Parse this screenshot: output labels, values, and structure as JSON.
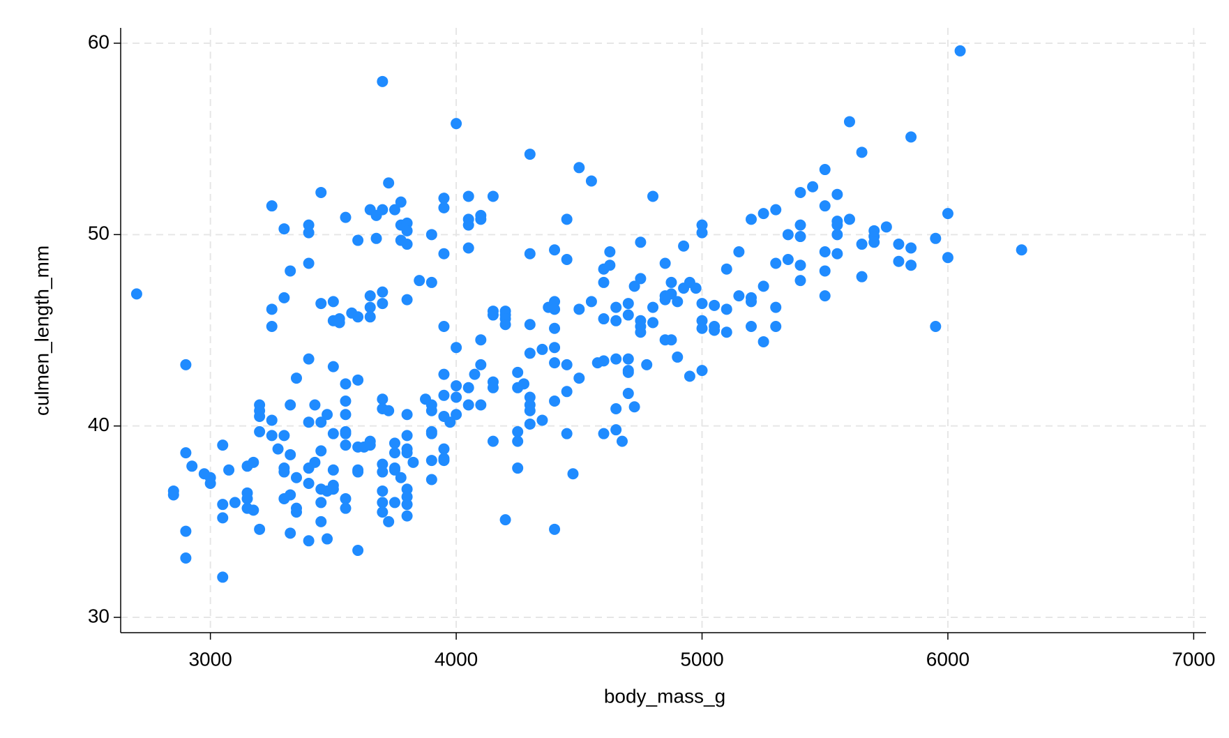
{
  "chart_data": {
    "type": "scatter",
    "x_label": "body_mass_g",
    "y_label": "culmen_length_mm",
    "xlim": [
      2635,
      7050
    ],
    "ylim": [
      29.2,
      60.8
    ],
    "xticks": [
      3000,
      4000,
      5000,
      6000,
      7000
    ],
    "yticks": [
      30,
      40,
      50,
      60
    ],
    "grid": true,
    "series": [
      {
        "color": "#1f8bff",
        "x": [
          2700,
          6050,
          3700,
          4000,
          6300,
          3050,
          2900,
          2900,
          2900,
          2900,
          2850,
          2850,
          2925,
          2975,
          3000,
          3000,
          3050,
          3050,
          3050,
          3075,
          3100,
          3150,
          3150,
          3150,
          3150,
          3175,
          3175,
          3200,
          3200,
          3200,
          3200,
          3200,
          3250,
          3250,
          3250,
          3250,
          3250,
          3275,
          3300,
          3300,
          3300,
          3300,
          3300,
          3300,
          3325,
          3325,
          3325,
          3325,
          3325,
          3350,
          3350,
          3350,
          3350,
          3400,
          3400,
          3400,
          3400,
          3400,
          3400,
          3400,
          3400,
          3425,
          3425,
          3450,
          3450,
          3450,
          3450,
          3450,
          3450,
          3450,
          3475,
          3475,
          3475,
          3500,
          3500,
          3500,
          3500,
          3500,
          3500,
          3500,
          3525,
          3525,
          3550,
          3550,
          3550,
          3550,
          3550,
          3550,
          3550,
          3550,
          3550,
          3575,
          3600,
          3600,
          3600,
          3600,
          3600,
          3600,
          3600,
          3625,
          3650,
          3650,
          3650,
          3650,
          3650,
          3650,
          3675,
          3675,
          3700,
          3700,
          3700,
          3700,
          3700,
          3700,
          3700,
          3700,
          3700,
          3700,
          3725,
          3725,
          3725,
          3750,
          3750,
          3750,
          3750,
          3750,
          3750,
          3775,
          3775,
          3775,
          3775,
          3800,
          3800,
          3800,
          3800,
          3800,
          3800,
          3800,
          3800,
          3800,
          3800,
          3800,
          3800,
          3825,
          3850,
          3875,
          3900,
          3900,
          3900,
          3900,
          3900,
          3900,
          3900,
          3900,
          3950,
          3950,
          3950,
          3950,
          3950,
          3950,
          3950,
          3950,
          3950,
          3950,
          3975,
          4000,
          4000,
          4000,
          4000,
          4050,
          4050,
          4050,
          4050,
          4050,
          4050,
          4075,
          4100,
          4100,
          4100,
          4100,
          4100,
          4150,
          4150,
          4150,
          4150,
          4150,
          4150,
          4200,
          4200,
          4200,
          4200,
          4200,
          4250,
          4250,
          4250,
          4250,
          4250,
          4275,
          4300,
          4300,
          4300,
          4300,
          4300,
          4300,
          4300,
          4300,
          4350,
          4350,
          4375,
          4400,
          4400,
          4400,
          4400,
          4400,
          4400,
          4400,
          4400,
          4450,
          4450,
          4450,
          4450,
          4450,
          4475,
          4500,
          4500,
          4500,
          4550,
          4550,
          4575,
          4600,
          4600,
          4600,
          4600,
          4600,
          4625,
          4625,
          4650,
          4650,
          4650,
          4650,
          4650,
          4675,
          4700,
          4700,
          4700,
          4700,
          4700,
          4700,
          4725,
          4725,
          4750,
          4750,
          4750,
          4750,
          4750,
          4775,
          4800,
          4800,
          4800,
          4850,
          4850,
          4850,
          4850,
          4875,
          4875,
          4875,
          4900,
          4900,
          4925,
          4925,
          4950,
          4950,
          4975,
          5000,
          5000,
          5000,
          5000,
          5000,
          5000,
          5050,
          5050,
          5050,
          5100,
          5100,
          5100,
          5150,
          5150,
          5200,
          5200,
          5200,
          5200,
          5250,
          5250,
          5250,
          5300,
          5300,
          5300,
          5300,
          5350,
          5350,
          5400,
          5400,
          5400,
          5400,
          5400,
          5450,
          5500,
          5500,
          5500,
          5500,
          5500,
          5550,
          5550,
          5550,
          5550,
          5550,
          5600,
          5600,
          5650,
          5650,
          5650,
          5700,
          5700,
          5700,
          5750,
          5800,
          5800,
          5850,
          5850,
          5850,
          5950,
          5950,
          6000,
          6000
        ],
        "values": [
          46.9,
          59.6,
          58.0,
          55.8,
          49.2,
          32.1,
          33.1,
          34.5,
          43.2,
          38.6,
          36.4,
          36.6,
          37.9,
          37.5,
          37.3,
          37.0,
          39.0,
          35.9,
          35.2,
          37.7,
          36.0,
          37.9,
          36.5,
          36.2,
          35.7,
          38.1,
          35.6,
          34.6,
          41.1,
          40.8,
          40.5,
          39.7,
          40.3,
          39.5,
          51.5,
          46.1,
          45.2,
          38.8,
          50.3,
          46.7,
          39.5,
          37.8,
          37.6,
          36.2,
          48.1,
          41.1,
          38.5,
          36.4,
          34.4,
          42.5,
          37.3,
          35.7,
          35.5,
          50.5,
          50.1,
          48.5,
          43.5,
          40.2,
          37.8,
          37.0,
          34.0,
          41.1,
          38.1,
          52.2,
          46.4,
          40.2,
          38.7,
          36.7,
          36.0,
          35.0,
          40.6,
          36.6,
          34.1,
          46.5,
          45.5,
          43.1,
          39.6,
          37.7,
          36.9,
          36.7,
          45.6,
          45.4,
          50.9,
          42.2,
          41.3,
          40.6,
          39.7,
          39.6,
          39.0,
          36.2,
          35.7,
          45.9,
          49.7,
          45.7,
          42.4,
          38.9,
          37.7,
          37.6,
          33.5,
          38.9,
          51.3,
          46.8,
          46.2,
          45.7,
          39.2,
          39.0,
          51.0,
          49.8,
          51.3,
          47.0,
          46.4,
          41.4,
          40.9,
          38.0,
          37.6,
          36.6,
          36.0,
          35.5,
          52.7,
          40.8,
          35.0,
          51.3,
          39.1,
          38.6,
          37.8,
          37.7,
          36.0,
          51.7,
          50.5,
          49.7,
          37.3,
          50.6,
          50.2,
          49.5,
          46.6,
          40.6,
          39.5,
          38.8,
          38.6,
          36.7,
          36.3,
          35.9,
          35.3,
          38.1,
          47.6,
          41.4,
          50.0,
          47.5,
          41.1,
          40.8,
          39.7,
          39.6,
          38.2,
          37.2,
          51.9,
          51.4,
          49.0,
          45.2,
          42.7,
          41.6,
          40.5,
          38.8,
          38.3,
          38.2,
          40.2,
          44.1,
          42.1,
          41.5,
          40.6,
          52.0,
          50.8,
          50.5,
          49.3,
          42.0,
          41.1,
          42.7,
          51.0,
          50.8,
          44.5,
          43.2,
          41.1,
          52.0,
          46.0,
          45.8,
          42.3,
          42.0,
          39.2,
          46.0,
          45.8,
          45.6,
          45.3,
          35.1,
          42.8,
          42.0,
          39.7,
          39.2,
          37.8,
          42.2,
          54.2,
          49.0,
          45.3,
          43.8,
          41.5,
          41.1,
          40.8,
          40.1,
          44.0,
          40.3,
          46.2,
          49.2,
          46.5,
          46.1,
          45.1,
          44.1,
          43.3,
          41.3,
          34.6,
          50.8,
          48.7,
          43.2,
          41.8,
          39.6,
          37.5,
          53.5,
          46.1,
          42.5,
          52.8,
          46.5,
          43.3,
          48.2,
          47.5,
          45.6,
          43.4,
          39.6,
          49.1,
          48.4,
          46.2,
          45.5,
          43.5,
          40.9,
          39.8,
          39.2,
          46.4,
          45.8,
          43.5,
          42.9,
          42.8,
          41.7,
          47.3,
          41.0,
          49.6,
          47.7,
          45.5,
          45.2,
          44.9,
          43.2,
          52.0,
          46.2,
          45.4,
          48.5,
          46.8,
          46.6,
          44.5,
          47.5,
          46.9,
          44.5,
          46.5,
          43.6,
          49.4,
          47.2,
          47.5,
          42.6,
          47.2,
          50.5,
          50.1,
          46.4,
          45.5,
          45.1,
          42.9,
          46.3,
          45.2,
          45.0,
          48.2,
          46.1,
          44.9,
          49.1,
          46.8,
          50.8,
          46.7,
          46.5,
          45.2,
          51.1,
          47.3,
          44.4,
          51.3,
          48.5,
          46.2,
          45.2,
          50.0,
          48.7,
          52.2,
          50.5,
          49.9,
          48.4,
          47.6,
          52.5,
          53.4,
          51.5,
          49.1,
          48.1,
          46.8,
          52.1,
          50.7,
          50.5,
          50.0,
          49.0,
          55.9,
          50.8,
          54.3,
          49.5,
          47.8,
          50.2,
          49.9,
          49.6,
          50.4,
          49.5,
          48.6,
          55.1,
          49.3,
          48.4,
          49.8,
          45.2,
          51.1,
          48.8
        ]
      }
    ]
  }
}
